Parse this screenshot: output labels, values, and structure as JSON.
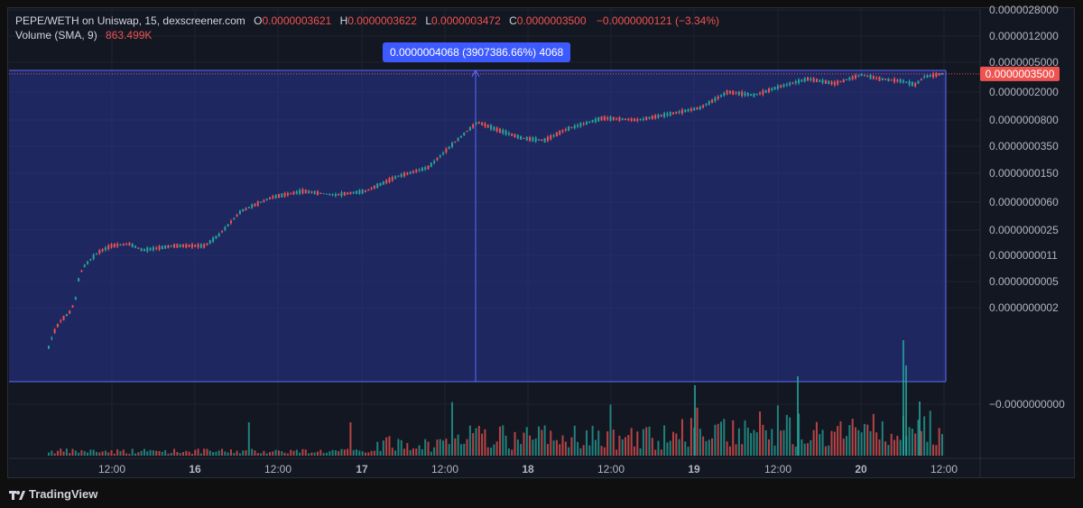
{
  "legend": {
    "pair": "PEPE/WETH on Uniswap, 15, dexscreener.com",
    "o_label": "O",
    "o_value": "0.0000003621",
    "h_label": "H",
    "h_value": "0.0000003622",
    "l_label": "L",
    "l_value": "0.0000003472",
    "c_label": "C",
    "c_value": "0.0000003500",
    "change": "−0.0000000121 (−3.34%)",
    "volume_label": "Volume (SMA, 9)",
    "volume_value": "863.499K"
  },
  "measure_label": "0.0000004068 (3907386.66%) 4068",
  "price_tag": "0.0000003500",
  "footer": {
    "brand": "TradingView"
  },
  "colors": {
    "up": "#26a69a",
    "down": "#ef5350",
    "measure_fill": "#283593",
    "measure_line": "#5c6bff"
  },
  "chart_data": {
    "type": "candlestick",
    "scale": "log",
    "x_ticks": [
      "12:00",
      "16",
      "12:00",
      "17",
      "12:00",
      "18",
      "12:00",
      "19",
      "12:00",
      "20",
      "12:00"
    ],
    "y_ticks": [
      "0.0000028000",
      "0.0000012000",
      "0.0000005000",
      "0.0000002000",
      "0.0000000800",
      "0.0000000350",
      "0.0000000150",
      "0.0000000060",
      "0.0000000025",
      "0.0000000011",
      "0.0000000005",
      "0.0000000002",
      "−0.0000000000"
    ],
    "last_price": 3.5e-07,
    "measure": {
      "change": "0.0000004068",
      "percent": "3907386.66%",
      "bars": 4068
    },
    "price_path": [
      [
        0.0,
        5e-11
      ],
      [
        0.005,
        8e-11
      ],
      [
        0.012,
        1.2e-10
      ],
      [
        0.025,
        1.8e-10
      ],
      [
        0.031,
        3e-10
      ],
      [
        0.034,
        6e-10
      ],
      [
        0.04,
        8e-10
      ],
      [
        0.055,
        1.2e-09
      ],
      [
        0.07,
        1.5e-09
      ],
      [
        0.09,
        1.6e-09
      ],
      [
        0.105,
        1.3e-09
      ],
      [
        0.14,
        1.5e-09
      ],
      [
        0.175,
        1.5e-09
      ],
      [
        0.19,
        2.1e-09
      ],
      [
        0.215,
        4.5e-09
      ],
      [
        0.25,
        7e-09
      ],
      [
        0.285,
        8.5e-09
      ],
      [
        0.32,
        7.5e-09
      ],
      [
        0.355,
        8.5e-09
      ],
      [
        0.39,
        1.35e-08
      ],
      [
        0.425,
        1.8e-08
      ],
      [
        0.455,
        4e-08
      ],
      [
        0.48,
        7.5e-08
      ],
      [
        0.5,
        6e-08
      ],
      [
        0.53,
        4.5e-08
      ],
      [
        0.555,
        4.2e-08
      ],
      [
        0.58,
        6e-08
      ],
      [
        0.62,
        8.5e-08
      ],
      [
        0.66,
        8e-08
      ],
      [
        0.7,
        1e-07
      ],
      [
        0.73,
        1.2e-07
      ],
      [
        0.76,
        2e-07
      ],
      [
        0.79,
        1.8e-07
      ],
      [
        0.815,
        2.3e-07
      ],
      [
        0.85,
        3e-07
      ],
      [
        0.88,
        2.6e-07
      ],
      [
        0.91,
        3.4e-07
      ],
      [
        0.93,
        3e-07
      ],
      [
        0.955,
        2.8e-07
      ],
      [
        0.97,
        2.5e-07
      ],
      [
        0.98,
        3.2e-07
      ],
      [
        1.0,
        3.5e-07
      ]
    ]
  }
}
